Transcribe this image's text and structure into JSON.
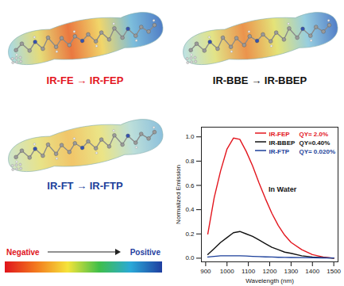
{
  "panels": [
    {
      "label": "IR-FE → IR-FEP",
      "color": "#e3161e"
    },
    {
      "label": "IR-BBE → IR-BBEP",
      "color": "#111111"
    },
    {
      "label": "IR-FT → IR-FTP",
      "color": "#1b3f9a"
    }
  ],
  "colorbar": {
    "low_label": "Negative",
    "high_label": "Positive",
    "colors": [
      "#e0141c",
      "#f37a1e",
      "#f5e43a",
      "#3fbf4a",
      "#2aa9d8",
      "#1f3ea0"
    ]
  },
  "chart_data": {
    "type": "line",
    "x_label": "Wavelength (nm)",
    "y_label": "Normalized Emission",
    "annotations": [
      "In Water"
    ],
    "x": [
      910,
      940,
      970,
      1000,
      1030,
      1060,
      1090,
      1120,
      1150,
      1180,
      1210,
      1240,
      1270,
      1300,
      1350,
      1400,
      1450,
      1500
    ],
    "series": [
      {
        "name": "IR-FEP",
        "qy_label": "QY= 2.0%",
        "color": "#e3161e",
        "values": [
          0.2,
          0.5,
          0.72,
          0.9,
          0.99,
          0.98,
          0.88,
          0.76,
          0.62,
          0.49,
          0.37,
          0.27,
          0.19,
          0.13,
          0.07,
          0.03,
          0.01,
          0.0
        ]
      },
      {
        "name": "IR-BBEP",
        "qy_label": "QY=0.40%",
        "color": "#111111",
        "values": [
          0.03,
          0.08,
          0.13,
          0.17,
          0.21,
          0.22,
          0.2,
          0.18,
          0.15,
          0.12,
          0.09,
          0.07,
          0.05,
          0.04,
          0.02,
          0.01,
          0.005,
          0.0
        ]
      },
      {
        "name": "IR-FTP",
        "qy_label": "QY= 0.020%",
        "color": "#1b3f9a",
        "values": [
          0.01,
          0.015,
          0.02,
          0.02,
          0.02,
          0.02,
          0.018,
          0.015,
          0.013,
          0.011,
          0.01,
          0.008,
          0.007,
          0.006,
          0.005,
          0.004,
          0.003,
          0.002
        ]
      }
    ],
    "xlim": [
      880,
      1520
    ],
    "xticks": [
      900,
      1000,
      1100,
      1200,
      1300,
      1400,
      1500
    ],
    "ylim": [
      -0.03,
      1.08
    ],
    "yticks": [
      {
        "value": 0,
        "label": "0.0"
      },
      {
        "value": 0.2,
        "label": "0.2"
      },
      {
        "value": 0.4,
        "label": "0.4"
      },
      {
        "value": 0.6,
        "label": "0.6"
      },
      {
        "value": 0.8,
        "label": "0.8"
      },
      {
        "value": 1,
        "label": "1.0"
      }
    ],
    "legend": "upper right",
    "grid": false
  }
}
